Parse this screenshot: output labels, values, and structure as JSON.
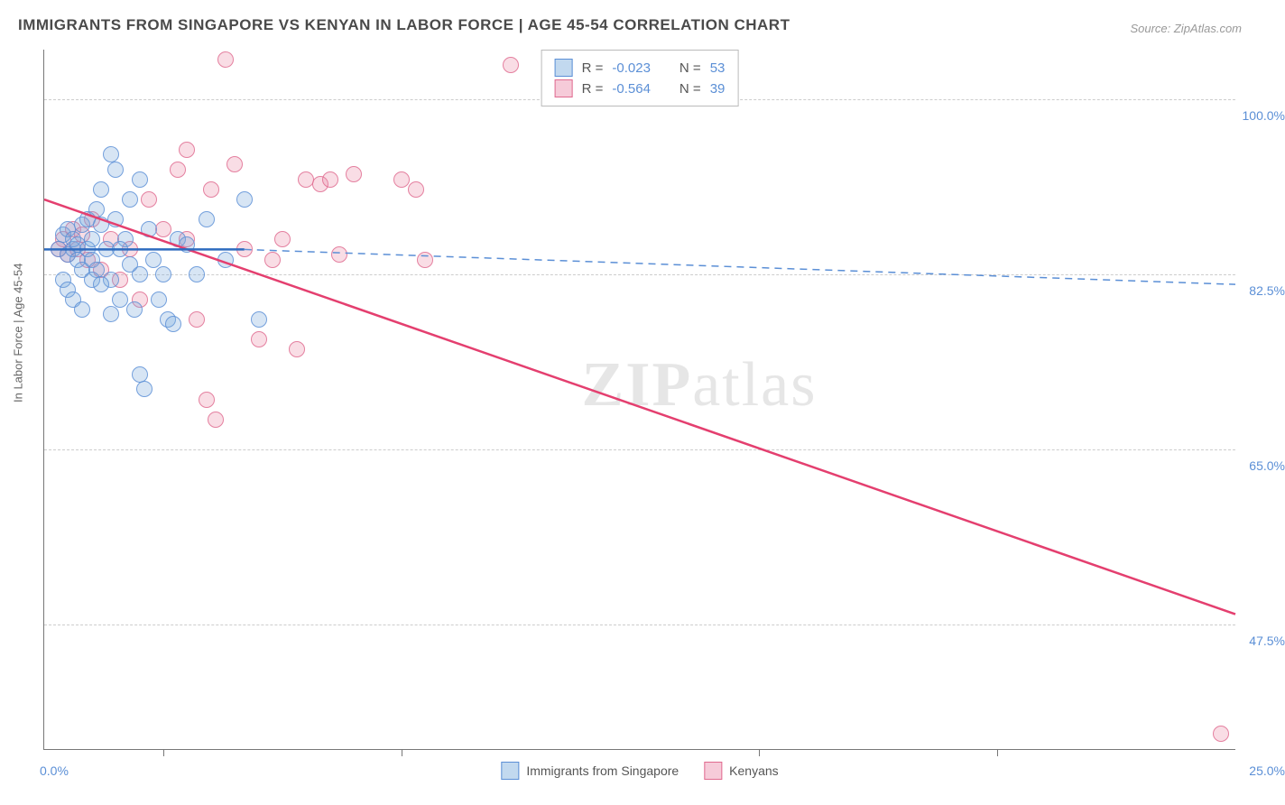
{
  "title": "IMMIGRANTS FROM SINGAPORE VS KENYAN IN LABOR FORCE | AGE 45-54 CORRELATION CHART",
  "source": "Source: ZipAtlas.com",
  "watermark_a": "ZIP",
  "watermark_b": "atlas",
  "yaxis_title": "In Labor Force | Age 45-54",
  "chart": {
    "type": "scatter",
    "background_color": "#ffffff",
    "grid_color": "#cccccc",
    "xlim": [
      0,
      25
    ],
    "ylim": [
      35,
      105
    ],
    "xticks_minor": [
      2.5,
      7.5,
      15,
      20
    ],
    "xtick_labels": {
      "left": "0.0%",
      "right": "25.0%"
    },
    "yticks": [
      47.5,
      65.0,
      82.5,
      100.0
    ],
    "ytick_labels": [
      "47.5%",
      "65.0%",
      "82.5%",
      "100.0%"
    ],
    "series_blue": {
      "label": "Immigrants from Singapore",
      "color_fill": "rgba(120,170,220,0.35)",
      "color_stroke": "#5b8fd6",
      "marker_radius_px": 8,
      "R": "-0.023",
      "N": "53",
      "trend_solid": {
        "x1": 0,
        "y1": 85.0,
        "x2": 4.2,
        "y2": 85.0
      },
      "trend_dashed": {
        "x1": 4.2,
        "y1": 85.0,
        "x2": 25,
        "y2": 81.5
      },
      "points": [
        [
          0.3,
          85.0
        ],
        [
          0.4,
          86.5
        ],
        [
          0.5,
          84.5
        ],
        [
          0.5,
          87.0
        ],
        [
          0.6,
          85.0
        ],
        [
          0.6,
          86.0
        ],
        [
          0.7,
          84.0
        ],
        [
          0.7,
          85.5
        ],
        [
          0.8,
          83.0
        ],
        [
          0.8,
          87.5
        ],
        [
          0.9,
          85.0
        ],
        [
          0.9,
          88.0
        ],
        [
          1.0,
          84.0
        ],
        [
          1.0,
          86.0
        ],
        [
          1.1,
          89.0
        ],
        [
          1.1,
          83.0
        ],
        [
          1.2,
          87.5
        ],
        [
          1.2,
          91.0
        ],
        [
          1.3,
          85.0
        ],
        [
          1.4,
          94.5
        ],
        [
          1.4,
          82.0
        ],
        [
          1.5,
          88.0
        ],
        [
          1.5,
          93.0
        ],
        [
          1.6,
          80.0
        ],
        [
          1.7,
          86.0
        ],
        [
          1.8,
          90.0
        ],
        [
          1.9,
          79.0
        ],
        [
          2.0,
          82.5
        ],
        [
          2.0,
          72.5
        ],
        [
          2.1,
          71.0
        ],
        [
          2.2,
          87.0
        ],
        [
          2.3,
          84.0
        ],
        [
          2.5,
          82.5
        ],
        [
          2.6,
          78.0
        ],
        [
          2.8,
          86.0
        ],
        [
          0.4,
          82.0
        ],
        [
          0.5,
          81.0
        ],
        [
          0.6,
          80.0
        ],
        [
          0.8,
          79.0
        ],
        [
          1.0,
          82.0
        ],
        [
          1.2,
          81.5
        ],
        [
          1.4,
          78.5
        ],
        [
          1.6,
          85.0
        ],
        [
          1.8,
          83.5
        ],
        [
          2.4,
          80.0
        ],
        [
          2.7,
          77.5
        ],
        [
          3.0,
          85.5
        ],
        [
          3.4,
          88.0
        ],
        [
          3.8,
          84.0
        ],
        [
          4.2,
          90.0
        ],
        [
          4.5,
          78.0
        ],
        [
          3.2,
          82.5
        ],
        [
          2.0,
          92.0
        ]
      ]
    },
    "series_pink": {
      "label": "Kenyans",
      "color_fill": "rgba(235,140,170,0.35)",
      "color_stroke": "#e06a8f",
      "marker_radius_px": 8,
      "R": "-0.564",
      "N": "39",
      "trend": {
        "x1": 0,
        "y1": 90.0,
        "x2": 25,
        "y2": 48.5
      },
      "points": [
        [
          0.4,
          86.0
        ],
        [
          0.5,
          84.5
        ],
        [
          0.6,
          87.0
        ],
        [
          0.7,
          85.0
        ],
        [
          0.8,
          86.5
        ],
        [
          0.9,
          84.0
        ],
        [
          1.0,
          88.0
        ],
        [
          1.2,
          83.0
        ],
        [
          1.4,
          86.0
        ],
        [
          1.6,
          82.0
        ],
        [
          1.8,
          85.0
        ],
        [
          2.0,
          80.0
        ],
        [
          2.2,
          90.0
        ],
        [
          2.5,
          87.0
        ],
        [
          2.8,
          93.0
        ],
        [
          3.0,
          95.0
        ],
        [
          3.2,
          78.0
        ],
        [
          3.5,
          91.0
        ],
        [
          3.8,
          104.0
        ],
        [
          3.0,
          86.0
        ],
        [
          3.4,
          70.0
        ],
        [
          4.0,
          93.5
        ],
        [
          4.2,
          85.0
        ],
        [
          4.5,
          76.0
        ],
        [
          4.8,
          84.0
        ],
        [
          5.0,
          86.0
        ],
        [
          5.3,
          75.0
        ],
        [
          5.5,
          92.0
        ],
        [
          5.8,
          91.5
        ],
        [
          6.0,
          92.0
        ],
        [
          6.2,
          84.5
        ],
        [
          6.5,
          92.5
        ],
        [
          7.5,
          92.0
        ],
        [
          7.8,
          91.0
        ],
        [
          8.0,
          84.0
        ],
        [
          3.6,
          68.0
        ],
        [
          9.8,
          103.5
        ],
        [
          24.7,
          36.5
        ],
        [
          0.3,
          85.0
        ]
      ]
    }
  },
  "legend_top_label_R": "R =",
  "legend_top_label_N": "N =",
  "colors": {
    "text_title": "#4a4a4a",
    "text_axis_value": "#5b8fd6",
    "text_axis_title": "#666666",
    "trend_blue": "#2e6bbf",
    "trend_pink": "#e43f6f"
  },
  "fonts": {
    "title_size_pt": 13,
    "axis_label_size_pt": 11,
    "legend_size_pt": 11
  }
}
